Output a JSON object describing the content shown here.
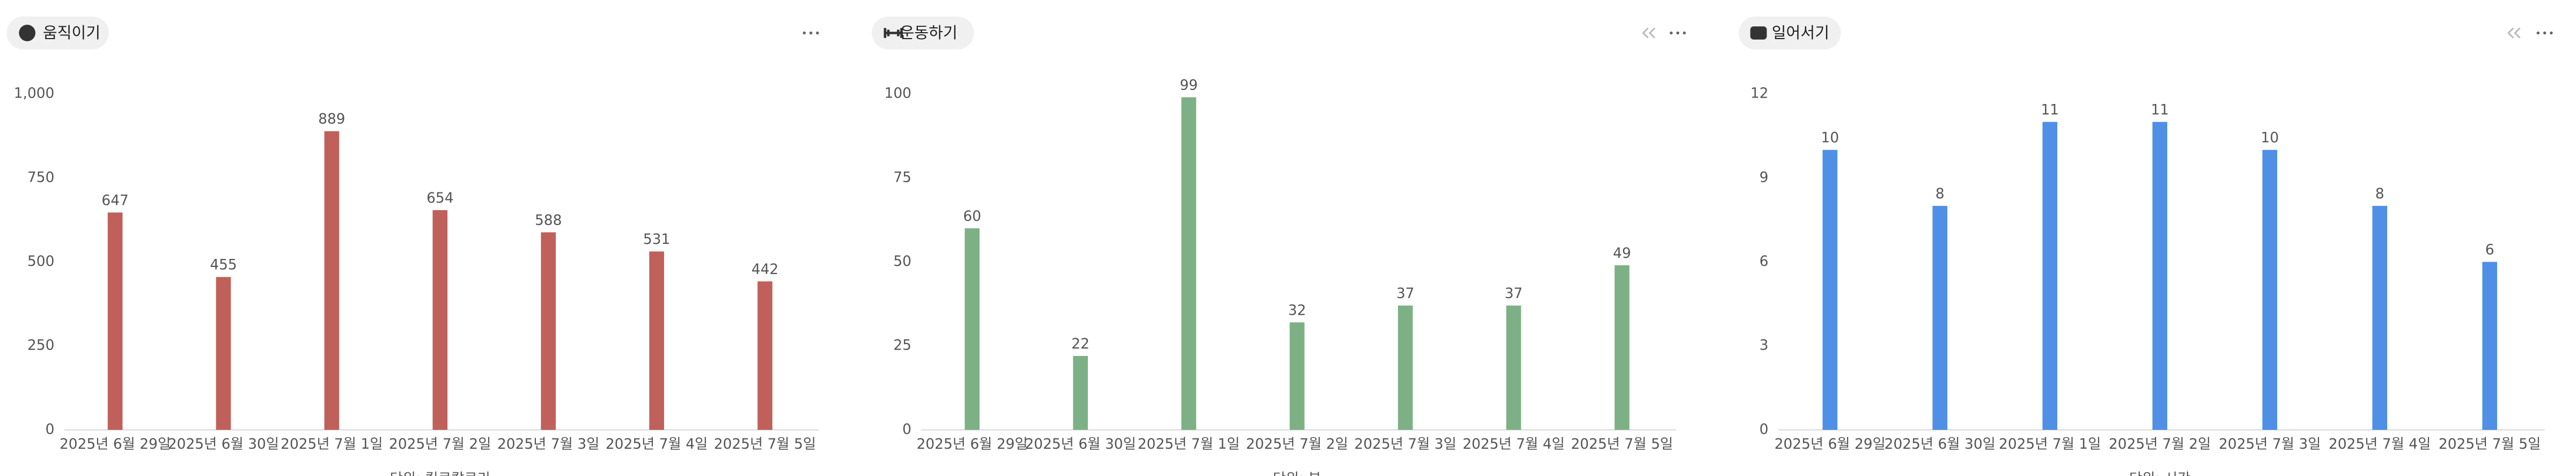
{
  "chart_data": [
    {
      "type": "bar",
      "title": "움직이기",
      "x_label": "단위: 킬로칼로리",
      "color": "#c0605a",
      "categories": [
        "2025년 6월 29일",
        "2025년 6월 30일",
        "2025년 7월 1일",
        "2025년 7월 2일",
        "2025년 7월 3일",
        "2025년 7월 4일",
        "2025년 7월 5일"
      ],
      "values": [
        647,
        455,
        889,
        654,
        588,
        531,
        442
      ],
      "ylim": [
        0,
        1000
      ],
      "yticks": [
        0,
        250,
        500,
        750,
        {
          "value": 1000,
          "label": "1,000"
        }
      ]
    },
    {
      "type": "bar",
      "title": "운동하기",
      "x_label": "단위: 분",
      "color": "#7db185",
      "categories": [
        "2025년 6월 29일",
        "2025년 6월 30일",
        "2025년 7월 1일",
        "2025년 7월 2일",
        "2025년 7월 3일",
        "2025년 7월 4일",
        "2025년 7월 5일"
      ],
      "values": [
        60,
        22,
        99,
        32,
        37,
        37,
        49
      ],
      "ylim": [
        0,
        100
      ],
      "yticks": [
        0,
        25,
        50,
        75,
        100
      ]
    },
    {
      "type": "bar",
      "title": "일어서기",
      "x_label": "단위: 시간",
      "color": "#4f8fe6",
      "categories": [
        "2025년 6월 29일",
        "2025년 6월 30일",
        "2025년 7월 1일",
        "2025년 7월 2일",
        "2025년 7월 3일",
        "2025년 7월 4일",
        "2025년 7월 5일"
      ],
      "values": [
        10,
        8,
        11,
        11,
        10,
        8,
        6
      ],
      "ylim": [
        0,
        12
      ],
      "yticks": [
        0,
        3,
        6,
        9,
        12
      ]
    }
  ]
}
